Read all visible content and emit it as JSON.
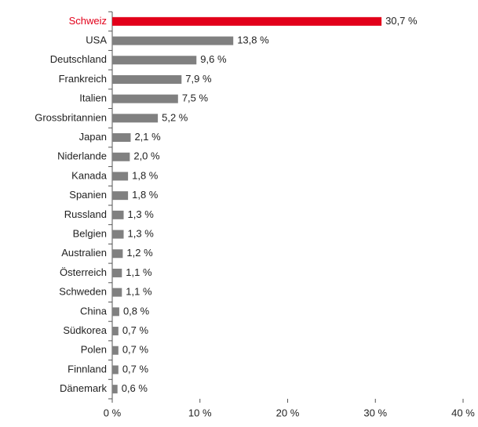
{
  "chart_data": {
    "type": "barh",
    "categories": [
      "Schweiz",
      "USA",
      "Deutschland",
      "Frankreich",
      "Italien",
      "Grossbritannien",
      "Japan",
      "Niderlande",
      "Kanada",
      "Spanien",
      "Russland",
      "Belgien",
      "Australien",
      "Österreich",
      "Schweden",
      "China",
      "Südkorea",
      "Polen",
      "Finnland",
      "Dänemark"
    ],
    "values": [
      30.7,
      13.8,
      9.6,
      7.9,
      7.5,
      5.2,
      2.1,
      2.0,
      1.8,
      1.8,
      1.3,
      1.3,
      1.2,
      1.1,
      1.1,
      0.8,
      0.7,
      0.7,
      0.7,
      0.6
    ],
    "value_labels": [
      "30,7 %",
      "13,8 %",
      "9,6 %",
      "7,9 %",
      "7,5 %",
      "5,2 %",
      "2,1 %",
      "2,0 %",
      "1,8 %",
      "1,8 %",
      "1,3 %",
      "1,3 %",
      "1,2 %",
      "1,1 %",
      "1,1 %",
      "0,8 %",
      "0,7 %",
      "0,7 %",
      "0,7 %",
      "0,6 %"
    ],
    "colors": [
      "#e2001a",
      "#808080",
      "#808080",
      "#808080",
      "#808080",
      "#808080",
      "#808080",
      "#808080",
      "#808080",
      "#808080",
      "#808080",
      "#808080",
      "#808080",
      "#808080",
      "#808080",
      "#808080",
      "#808080",
      "#808080",
      "#808080",
      "#808080"
    ],
    "label_colors": [
      "#e2001a",
      "#222222",
      "#222222",
      "#222222",
      "#222222",
      "#222222",
      "#222222",
      "#222222",
      "#222222",
      "#222222",
      "#222222",
      "#222222",
      "#222222",
      "#222222",
      "#222222",
      "#222222",
      "#222222",
      "#222222",
      "#222222",
      "#222222"
    ],
    "xlim": [
      0,
      40
    ],
    "xticks": [
      {
        "value": 0,
        "label": "0 %"
      },
      {
        "value": 10,
        "label": "10 %"
      },
      {
        "value": 20,
        "label": "20 %"
      },
      {
        "value": 30,
        "label": "30 %"
      },
      {
        "value": 40,
        "label": "40 %"
      }
    ],
    "grid": false
  }
}
